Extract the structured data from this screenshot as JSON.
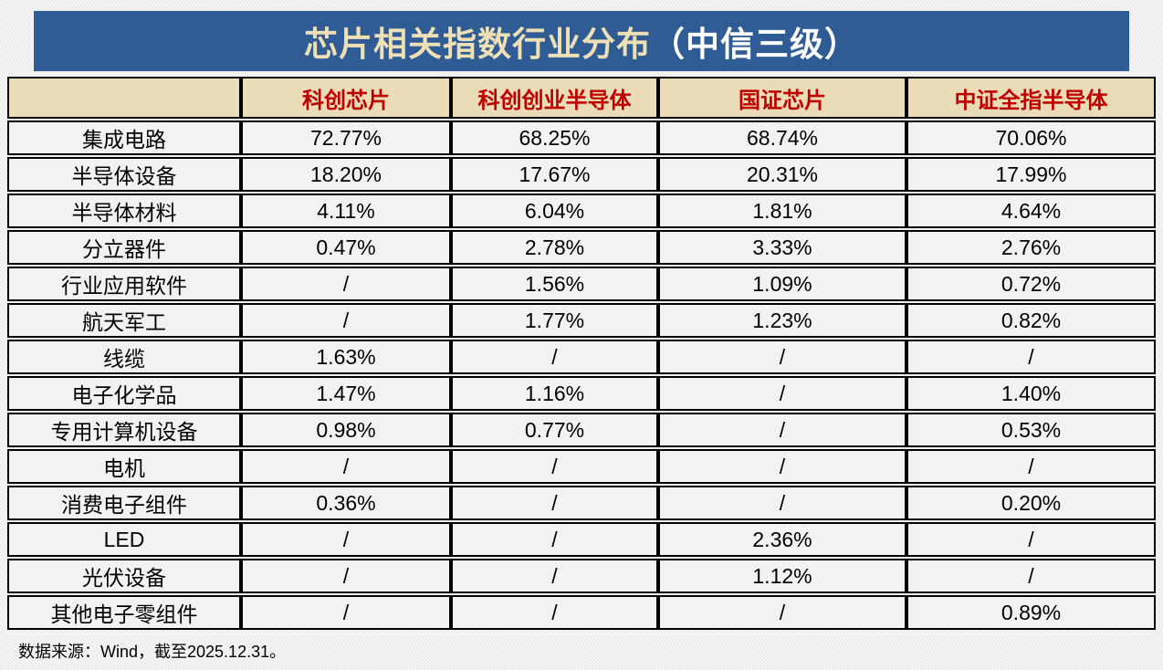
{
  "title": {
    "main": "芯片相关指数行业分布",
    "suffix": "（中信三级）"
  },
  "footer": {
    "source_note": "数据来源：Wind，截至2025.12.31。"
  },
  "colors": {
    "page_bg": "#F0F0F0",
    "title_bg": "#2F5C95",
    "title_text": "#EFDFB5",
    "title_suffix_text": "#FFFFFF",
    "header_bg": "#EADCB6",
    "header_text": "#C00000",
    "cell_bg": "#F2F2F2",
    "border": "#000000"
  },
  "chart_data": {
    "type": "table",
    "title": "芯片相关指数行业分布（中信三级）",
    "columns": [
      "",
      "科创芯片",
      "科创创业半导体",
      "国证芯片",
      "中证全指半导体"
    ],
    "rows": [
      {
        "industry": "集成电路",
        "values": [
          "72.77%",
          "68.25%",
          "68.74%",
          "70.06%"
        ]
      },
      {
        "industry": "半导体设备",
        "values": [
          "18.20%",
          "17.67%",
          "20.31%",
          "17.99%"
        ]
      },
      {
        "industry": "半导体材料",
        "values": [
          "4.11%",
          "6.04%",
          "1.81%",
          "4.64%"
        ]
      },
      {
        "industry": "分立器件",
        "values": [
          "0.47%",
          "2.78%",
          "3.33%",
          "2.76%"
        ]
      },
      {
        "industry": "行业应用软件",
        "values": [
          "/",
          "1.56%",
          "1.09%",
          "0.72%"
        ]
      },
      {
        "industry": "航天军工",
        "values": [
          "/",
          "1.77%",
          "1.23%",
          "0.82%"
        ]
      },
      {
        "industry": "线缆",
        "values": [
          "1.63%",
          "/",
          "/",
          "/"
        ]
      },
      {
        "industry": "电子化学品",
        "values": [
          "1.47%",
          "1.16%",
          "/",
          "1.40%"
        ]
      },
      {
        "industry": "专用计算机设备",
        "values": [
          "0.98%",
          "0.77%",
          "/",
          "0.53%"
        ]
      },
      {
        "industry": "电机",
        "values": [
          "/",
          "/",
          "/",
          "/"
        ]
      },
      {
        "industry": "消费电子组件",
        "values": [
          "0.36%",
          "/",
          "/",
          "0.20%"
        ]
      },
      {
        "industry": "LED",
        "values": [
          "/",
          "/",
          "2.36%",
          "/"
        ]
      },
      {
        "industry": "光伏设备",
        "values": [
          "/",
          "/",
          "1.12%",
          "/"
        ]
      },
      {
        "industry": "其他电子零组件",
        "values": [
          "/",
          "/",
          "/",
          "0.89%"
        ]
      }
    ],
    "missing_value_marker": "/",
    "source_note": "数据来源：Wind，截至2025.12.31。"
  }
}
